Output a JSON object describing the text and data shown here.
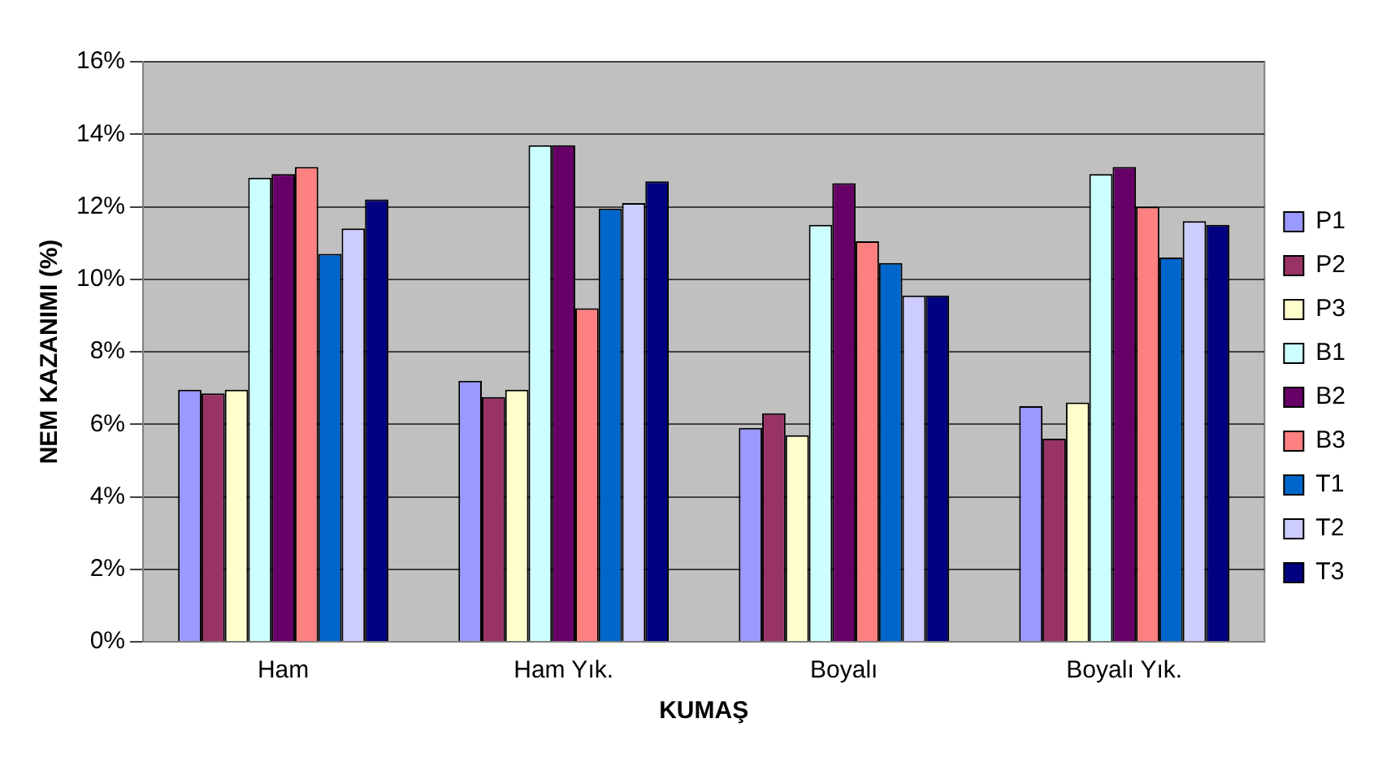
{
  "chart_data": {
    "type": "bar",
    "xlabel": "KUMAŞ",
    "ylabel": "NEM KAZANIMI (%)",
    "categories": [
      "Ham",
      "Ham Yık.",
      "Boyalı",
      "Boyalı Yık."
    ],
    "series": [
      {
        "name": "P1",
        "color": "#9999ff",
        "values": [
          6.95,
          7.2,
          5.9,
          6.5
        ]
      },
      {
        "name": "P2",
        "color": "#993366",
        "values": [
          6.85,
          6.75,
          6.3,
          5.6
        ]
      },
      {
        "name": "P3",
        "color": "#ffffcc",
        "values": [
          6.95,
          6.95,
          5.7,
          6.6
        ]
      },
      {
        "name": "B1",
        "color": "#ccffff",
        "values": [
          12.8,
          13.7,
          11.5,
          12.9
        ]
      },
      {
        "name": "B2",
        "color": "#660066",
        "values": [
          12.9,
          13.7,
          12.65,
          13.1
        ]
      },
      {
        "name": "B3",
        "color": "#ff8080",
        "values": [
          13.1,
          9.2,
          11.05,
          12.0
        ]
      },
      {
        "name": "T1",
        "color": "#0066cc",
        "values": [
          10.7,
          11.95,
          10.45,
          10.6
        ]
      },
      {
        "name": "T2",
        "color": "#ccccff",
        "values": [
          11.4,
          12.1,
          9.55,
          11.6
        ]
      },
      {
        "name": "T3",
        "color": "#000080",
        "values": [
          12.2,
          12.7,
          9.55,
          11.5
        ]
      }
    ],
    "ylim": [
      0,
      16
    ],
    "yticks": [
      {
        "value": 0,
        "label": "0%"
      },
      {
        "value": 2,
        "label": "2%"
      },
      {
        "value": 4,
        "label": "4%"
      },
      {
        "value": 6,
        "label": "6%"
      },
      {
        "value": 8,
        "label": "8%"
      },
      {
        "value": 10,
        "label": "10%"
      },
      {
        "value": 12,
        "label": "12%"
      },
      {
        "value": 14,
        "label": "14%"
      },
      {
        "value": 16,
        "label": "16%"
      }
    ],
    "grid": "y",
    "legend": "right"
  }
}
